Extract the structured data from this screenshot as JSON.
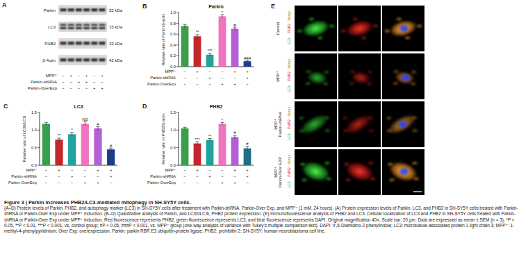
{
  "chart_data": [
    {
      "type": "bar",
      "panel_label": "B",
      "title": "Parkin",
      "y_label": "Relative ratio of Parkin/β-actin",
      "categories": [
        null,
        null,
        null,
        null,
        null,
        null
      ],
      "values": [
        0.75,
        0.56,
        0.22,
        0.93,
        0.7,
        0.1
      ],
      "errors": [
        0.03,
        0.03,
        0.03,
        0.03,
        0.03,
        0.01
      ],
      "significance": [
        null,
        "**",
        "***",
        "*",
        "#",
        "###"
      ],
      "colors": [
        "#3a9e4f",
        "#c1272d",
        "#1fa39c",
        "#ef74bd",
        "#b35fd6",
        "#1e3c8c"
      ],
      "ylim": [
        0,
        1.0
      ],
      "yticks": [
        {
          "value": 0,
          "label": "0.0"
        },
        0.2,
        0.4,
        0.6,
        0.8,
        {
          "value": 1.0,
          "label": "1.0"
        }
      ],
      "treatment_rows": [
        {
          "name": "MPP⁺",
          "signs": [
            "−",
            "+",
            "−",
            "−",
            "+",
            "+"
          ]
        },
        {
          "name": "Parkin-shRNA",
          "signs": [
            "−",
            "−",
            "+",
            "−",
            "−",
            "+"
          ]
        },
        {
          "name": "Parkin-OverExp",
          "signs": [
            "−",
            "−",
            "−",
            "+",
            "+",
            "−"
          ]
        }
      ]
    },
    {
      "type": "bar",
      "panel_label": "C",
      "title": "LC3",
      "y_label": "Relative ratio of LC3II/LC3I",
      "categories": [
        null,
        null,
        null,
        null,
        null,
        null
      ],
      "values": [
        1.18,
        0.73,
        0.88,
        1.18,
        1.05,
        0.45
      ],
      "errors": [
        0.04,
        0.04,
        0.05,
        0.06,
        0.05,
        0.04
      ],
      "significance": [
        null,
        "**",
        "*",
        "NS",
        "#",
        "#"
      ],
      "colors": [
        "#3a9e4f",
        "#c1272d",
        "#1fa39c",
        "#ef74bd",
        "#b35fd6",
        "#1e3c8c"
      ],
      "ylim": [
        0,
        1.5
      ],
      "yticks": [
        {
          "value": 0,
          "label": "0.0"
        },
        0.5,
        {
          "value": 1.0,
          "label": "1.0"
        },
        1.5
      ],
      "treatment_rows": [
        {
          "name": "MPP⁺",
          "signs": [
            "−",
            "+",
            "−",
            "−",
            "+",
            "+"
          ]
        },
        {
          "name": "Parkin-shRNA",
          "signs": [
            "−",
            "−",
            "+",
            "−",
            "−",
            "+"
          ]
        },
        {
          "name": "Parkin-OverExp",
          "signs": [
            "−",
            "−",
            "−",
            "+",
            "+",
            "−"
          ]
        }
      ]
    },
    {
      "type": "bar",
      "panel_label": "D",
      "title": "PHB2",
      "y_label": "Relative ratio of PHB2/β-actin",
      "categories": [
        null,
        null,
        null,
        null,
        null,
        null
      ],
      "values": [
        1.05,
        0.62,
        0.72,
        1.18,
        0.8,
        0.48
      ],
      "errors": [
        0.03,
        0.05,
        0.04,
        0.04,
        0.05,
        0.06
      ],
      "significance": [
        null,
        "***",
        "**",
        "*",
        "#",
        "#"
      ],
      "colors": [
        "#3a9e4f",
        "#c1272d",
        "#1fa39c",
        "#ef74bd",
        "#b35fd6",
        "#1e6f86"
      ],
      "ylim": [
        0,
        1.5
      ],
      "yticks": [
        {
          "value": 0,
          "label": "0.0"
        },
        0.5,
        {
          "value": 1.0,
          "label": "1.0"
        },
        1.5
      ],
      "treatment_rows": [
        {
          "name": "MPP⁺",
          "signs": [
            "−",
            "+",
            "−",
            "−",
            "+",
            "+"
          ]
        },
        {
          "name": "Parkin-shRNA",
          "signs": [
            "−",
            "−",
            "+",
            "−",
            "−",
            "+"
          ]
        },
        {
          "name": "Parkin-OverExp",
          "signs": [
            "−",
            "−",
            "−",
            "+",
            "+",
            "−"
          ]
        }
      ]
    }
  ],
  "blot": {
    "panel_label": "A",
    "bands": [
      {
        "name": "Parkin",
        "size": "52 kDa"
      },
      {
        "name": "LC3",
        "size": "15 kDa"
      },
      {
        "name": "PHB2",
        "size": "33 kDa"
      },
      {
        "name": "β-Actin",
        "size": "42 kDa"
      }
    ],
    "treatment_rows": [
      {
        "name": "MPP⁺",
        "signs": [
          "−",
          "+",
          "−",
          "+",
          "−",
          "+"
        ]
      },
      {
        "name": "Parkin-shRNA",
        "signs": [
          "−",
          "−",
          "+",
          "+",
          "−",
          "−"
        ]
      },
      {
        "name": "Parkin-OverExp",
        "signs": [
          "−",
          "−",
          "−",
          "−",
          "+",
          "+"
        ]
      }
    ]
  },
  "immunofluorescence": {
    "panel_label": "E",
    "channels": [
      "LC3",
      "PHB2",
      "Merge"
    ],
    "rows": [
      {
        "label": [
          "Control"
        ]
      },
      {
        "label": [
          "MPP⁺"
        ]
      },
      {
        "label": [
          "MPP⁺",
          "Parkin-shRNA"
        ]
      },
      {
        "label": [
          "MPP⁺",
          "Parkin-Over EXP"
        ]
      }
    ]
  },
  "caption": {
    "title": "Figure 3 | Parkin increases PHB2/LC3-mediated mitophagy in SH-SY5Y cells.",
    "text": "(A–D) Protein levels of Parkin, PHB2, and autophagy marker (LC3) in SH-SY5Y cells after treatment with Parkin-shRNA, Parkin-Over Exp, and MPP⁺ (1 mM, 24 hours). (A) Protein expression levels of Parkin, LC3, and PHB2 in SH-SY5Y cells treated with Parkin-shRNA or Parkin-Over Exp under MPP⁺ induction. (B–D) Quantitative analysis of Parkin, and LC3II/LC3I, PHB2 protein expression. (E) Immunofluorescence analysis of PHB2 and LC3. Cellular localization of LC3 and PHB2 in SH-SY5Y cells treated with Parkin-shRNA or Parkin-Over Exp under MPP⁺ induction. Red fluorescence represents PHB2, green fluorescence represents LC3, and blue fluorescence represents DAPI. Original magnification 40×, Scale bar: 20 µm. Data are expressed as mean ± SEM (n = 3). *P < 0.05, **P < 0.01, ***P < 0.001, vs. control group; #P < 0.05, ###P < 0.001, vs. MPP⁺ group (one-way analysis of variance with Tukey's multiple comparison test). DAPI: 4′,6-Diamidino-2-phenylindole; LC3: microtubule-associated protein 1 light chain 3; MPP⁺: 1-methyl-4-phenylpyridinium; Over Exp: overexpression; Parkin: parkin RBR E3 ubiquitin-protein ligase; PHB2: prohibitin 2; SH-SY5Y: human neuroblastoma cell line."
  }
}
